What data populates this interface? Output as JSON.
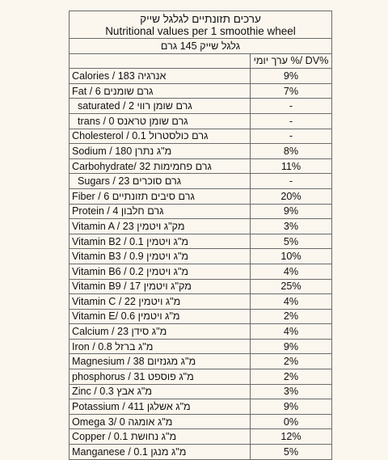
{
  "title": {
    "hebrew": "ערכים תזונתיים לגלגל שייק",
    "english": "Nutritional values per 1 smoothie wheel"
  },
  "serving": "גלגל שייק 145 גרם",
  "header": {
    "name_col": "",
    "dv_col": "ערך יומי %/ DV%"
  },
  "rows": [
    {
      "label": "Calories / 183 אנרגיה",
      "dv": "9%"
    },
    {
      "label": "Fat / 6 גרם שומנים",
      "dv": "7%"
    },
    {
      "label": "saturated / 2 גרם שומן רווי",
      "dv": "-",
      "indent": true
    },
    {
      "label": "trans / 0 גרם שומן טראנס",
      "dv": "-",
      "indent": true
    },
    {
      "label": "Cholesterol / 0.1 גרם כולסטרול",
      "dv": "-"
    },
    {
      "label": "Sodium / 180 מ\"ג נתרן",
      "dv": "8%"
    },
    {
      "label": "Carbohydrate/ 32 גרם פחמימות",
      "dv": "11%"
    },
    {
      "label": "Sugars / 23 גרם סוכרים",
      "dv": "-",
      "indent": true
    },
    {
      "label": "Fiber / 6 גרם סיבים תזונתיים",
      "dv": "20%"
    },
    {
      "label": "Protein / 4 גרם חלבון",
      "dv": "9%"
    },
    {
      "label": "Vitamin A / 23 מק\"ג ויטמין",
      "dv": "3%"
    },
    {
      "label": "Vitamin B2 / 0.1 מ\"ג ויטמין",
      "dv": "5%"
    },
    {
      "label": "Vitamin B3 / 0.9 מ\"ג ויטמין",
      "dv": "10%"
    },
    {
      "label": "Vitamin B6 / 0.2 מ\"ג ויטמין",
      "dv": "4%"
    },
    {
      "label": "Vitamin B9 / 17 מק\"ג ויטמין",
      "dv": "25%"
    },
    {
      "label": "Vitamin C / 22 מ\"ג ויטמין",
      "dv": "4%"
    },
    {
      "label": "Vitamin E/ 0.6 מ\"ג ויטמין",
      "dv": "2%"
    },
    {
      "label": "Calcium / 23 מ\"ג סידן",
      "dv": "4%"
    },
    {
      "label": "Iron / 0.8 מ\"ג ברזל",
      "dv": "9%"
    },
    {
      "label": "Magnesium / 38 מ\"ג מגנזיום",
      "dv": "2%"
    },
    {
      "label": "phosphorus / 31 מ\"ג פוספט",
      "dv": "2%"
    },
    {
      "label": "Zinc / 0.3 מ\"ג אבץ",
      "dv": "3%"
    },
    {
      "label": "Potassium / 411 מ\"ג אשלגן",
      "dv": "9%"
    },
    {
      "label": "Omega 3/ 0 מ\"ג אומגה",
      "dv": "0%"
    },
    {
      "label": "Copper / 0.1 מ\"ג נחושת",
      "dv": "12%"
    },
    {
      "label": "Manganese / 0.1 מ\"ג מנגן",
      "dv": "5%"
    }
  ]
}
